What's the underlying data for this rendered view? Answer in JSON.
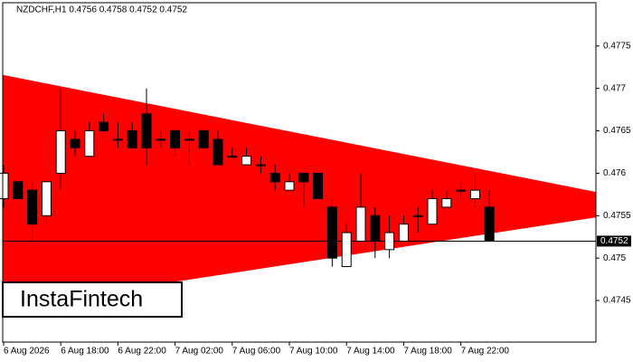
{
  "chart_data": {
    "type": "candlestick",
    "title": "NZDCHF,H1  0.4756 0.4758 0.4752 0.4752",
    "categories": [
      "6 Aug 2026",
      null,
      null,
      null,
      "6 Aug 18:00",
      null,
      null,
      null,
      "6 Aug 22:00",
      null,
      null,
      null,
      "7 Aug 02:00",
      null,
      null,
      null,
      "7 Aug 06:00",
      null,
      null,
      null,
      "7 Aug 10:00",
      null,
      null,
      null,
      "7 Aug 14:00",
      null,
      null,
      null,
      "7 Aug 18:00",
      null,
      null,
      null,
      "7 Aug 22:00",
      null,
      null
    ],
    "open": [
      0.4757,
      0.4759,
      0.4758,
      0.4755,
      0.476,
      0.4764,
      0.4762,
      0.4766,
      0.4764,
      0.4765,
      0.4767,
      0.4764,
      0.4765,
      0.4764,
      0.4765,
      0.4764,
      0.4762,
      0.4761,
      0.4761,
      0.476,
      0.4758,
      0.476,
      0.476,
      0.4756,
      0.4749,
      0.4752,
      0.4755,
      0.4751,
      0.4752,
      0.4755,
      0.4754,
      0.4756,
      0.4758,
      0.4757,
      0.4756
    ],
    "high": [
      0.4761,
      0.4759,
      0.4759,
      0.4759,
      0.477,
      0.4765,
      0.4766,
      0.4767,
      0.4766,
      0.4766,
      0.477,
      0.4765,
      0.4765,
      0.4765,
      0.4765,
      0.4765,
      0.4763,
      0.4763,
      0.4762,
      0.4761,
      0.476,
      0.476,
      0.476,
      0.4757,
      0.4754,
      0.476,
      0.4756,
      0.4755,
      0.4755,
      0.4756,
      0.4758,
      0.4758,
      0.4759,
      0.476,
      0.4758
    ],
    "low": [
      0.4756,
      0.4757,
      0.4752,
      0.4754,
      0.4758,
      0.4762,
      0.4762,
      0.4765,
      0.4763,
      0.4763,
      0.4761,
      0.4763,
      0.4762,
      0.4761,
      0.4763,
      0.4761,
      0.4762,
      0.4761,
      0.476,
      0.4758,
      0.4758,
      0.4756,
      0.4757,
      0.4749,
      0.4749,
      0.4752,
      0.475,
      0.475,
      0.4752,
      0.4753,
      0.4754,
      0.4756,
      0.4757,
      0.4756,
      0.4752
    ],
    "close": [
      0.476,
      0.4757,
      0.4754,
      0.4759,
      0.4765,
      0.4763,
      0.4765,
      0.4765,
      0.4764,
      0.4763,
      0.4763,
      0.4764,
      0.4763,
      0.4764,
      0.4763,
      0.4761,
      0.4762,
      0.4762,
      0.4761,
      0.4759,
      0.4759,
      0.4759,
      0.4757,
      0.475,
      0.4753,
      0.4756,
      0.4752,
      0.4753,
      0.4754,
      0.4755,
      0.4757,
      0.4757,
      0.4758,
      0.4758,
      0.4752
    ],
    "up_color": "#ffffff",
    "down_color": "#000000",
    "ylim": [
      0.47401,
      0.47801
    ],
    "yticks": [
      0.4745,
      0.475,
      0.4755,
      0.476,
      0.4765,
      0.477,
      0.4775
    ],
    "last_price": 0.4752,
    "pattern": {
      "color": "#ff0000",
      "upper": [
        0.47716,
        0.47578
      ],
      "lower": [
        0.47441,
        0.47548
      ]
    },
    "logo": "InstaFintech"
  }
}
